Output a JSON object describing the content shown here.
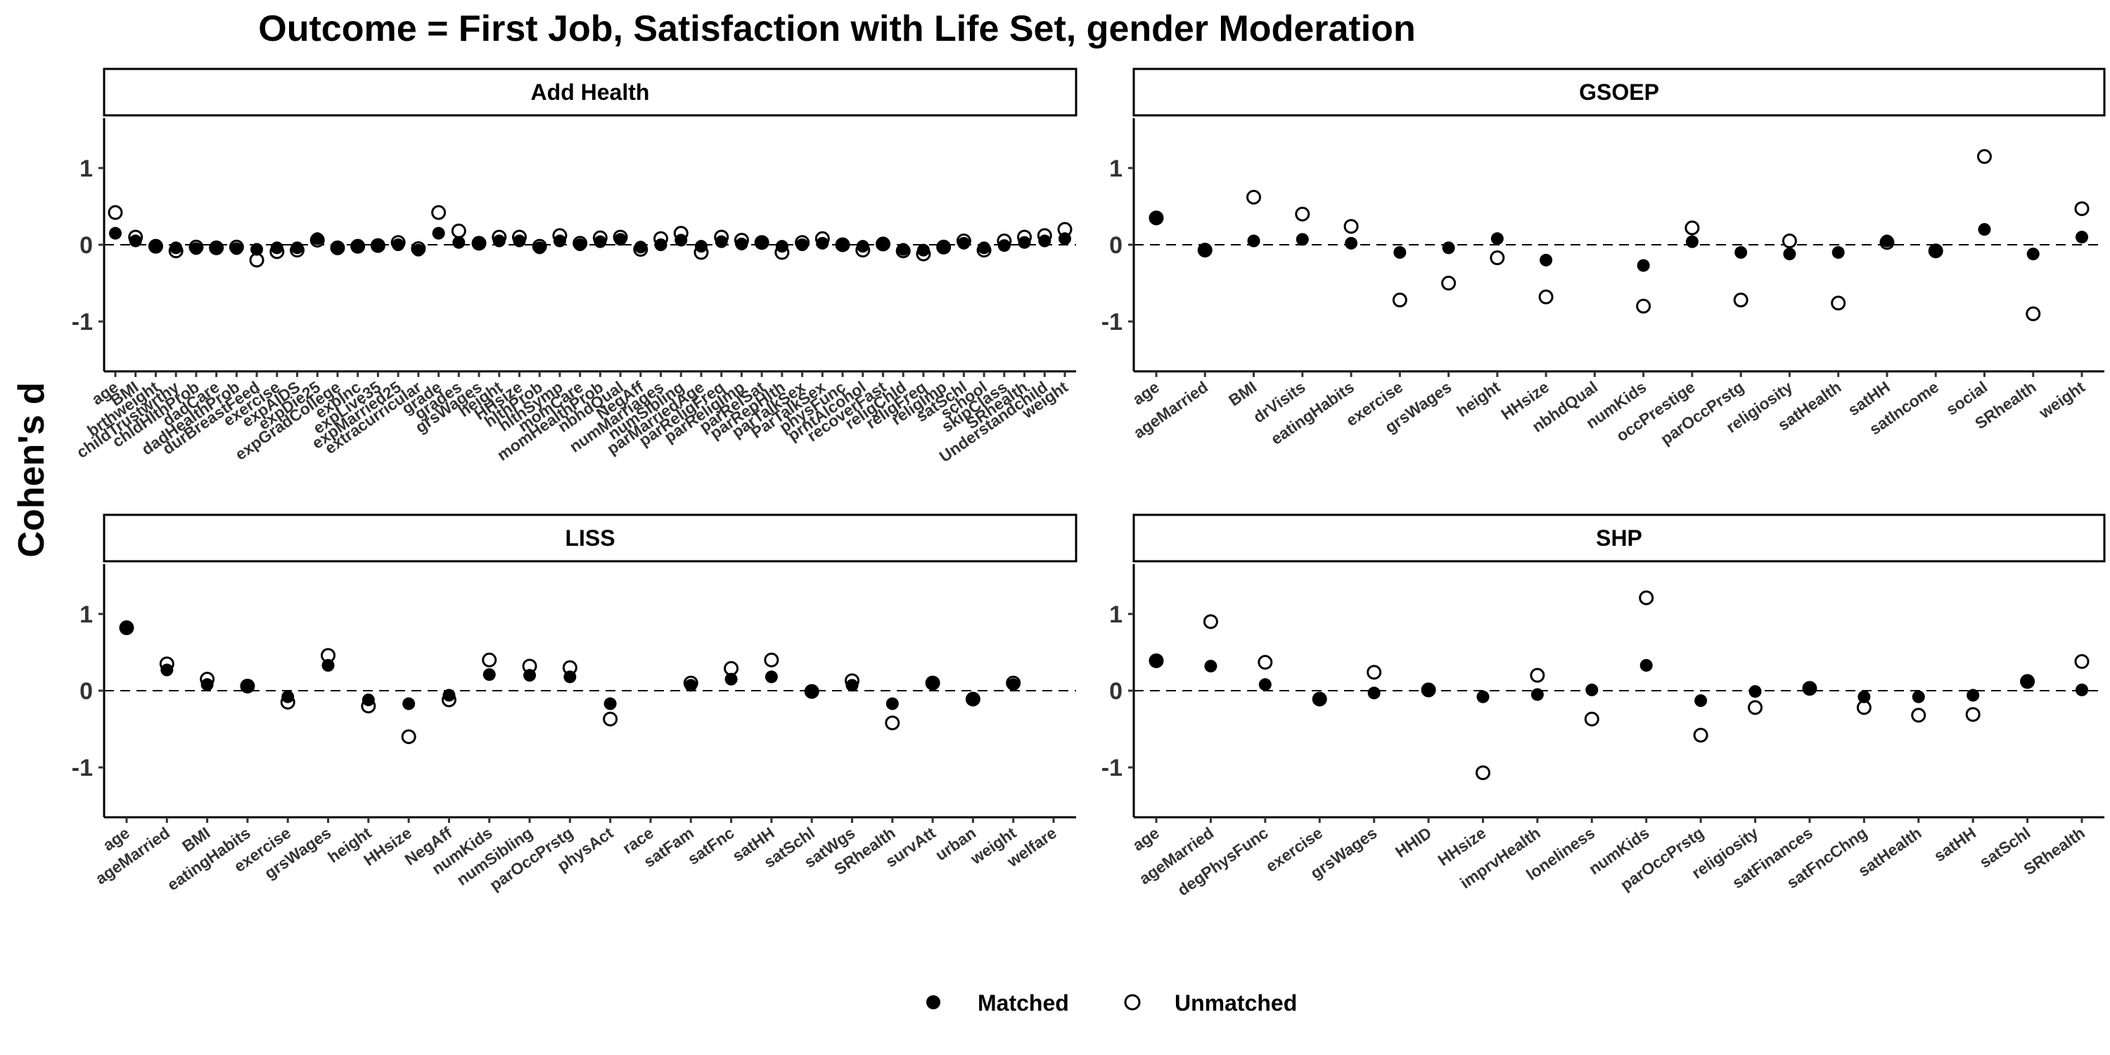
{
  "chart_data": {
    "type": "scatter",
    "title": "Outcome = First Job, Satisfaction with Life Set, gender Moderation",
    "ylabel": "Cohen's d",
    "xlabel": "",
    "ylim": [
      -1.65,
      1.65
    ],
    "yticks": [
      -1,
      0,
      1
    ],
    "reference_line_y": 0,
    "legend": {
      "position": "bottom",
      "entries": [
        {
          "name": "Matched",
          "marker": "filled-circle"
        },
        {
          "name": "Unmatched",
          "marker": "open-circle"
        }
      ]
    },
    "colors": {
      "point": "#000000",
      "refline": "#000000",
      "strip_fill": "#ffffff"
    },
    "panels": [
      {
        "name": "Add Health",
        "categories": [
          "age",
          "BMI",
          "brthweight",
          "childTrustwrthy",
          "chldHlthProb",
          "dadCare",
          "dadHealthProb",
          "durBreastFeed",
          "exercise",
          "expAIDS",
          "expDie25",
          "expGradCollege",
          "expInc",
          "expLive35",
          "expMarried25",
          "extracurricular",
          "grade",
          "grades",
          "grsWages",
          "height",
          "HHsize",
          "hlthProb",
          "hlthSymp",
          "momCare",
          "momHealthProb",
          "nbhdQual",
          "NegAff",
          "numMarriages",
          "numSibling",
          "parMarriedAge",
          "parReligFreq",
          "parReligImp",
          "parRelSat",
          "parRepHlth",
          "parTalkSex",
          "ParTalkSex",
          "physFunc",
          "prntAlcohol",
          "recoverFast",
          "religChld",
          "religFreq",
          "religImp",
          "satSchl",
          "school",
          "skipClass",
          "SRhealth",
          "Understandchild",
          "weight"
        ],
        "series": [
          {
            "name": "Matched",
            "values": [
              0.15,
              0.05,
              -0.03,
              -0.04,
              -0.05,
              -0.04,
              -0.05,
              -0.06,
              -0.04,
              -0.04,
              0.08,
              -0.03,
              -0.03,
              -0.02,
              0.0,
              -0.07,
              0.15,
              0.03,
              0.02,
              0.05,
              0.05,
              -0.04,
              0.05,
              0.0,
              0.04,
              0.07,
              -0.03,
              0.0,
              0.06,
              -0.02,
              0.04,
              0.01,
              0.02,
              -0.02,
              0.0,
              0.02,
              0.0,
              -0.02,
              0.01,
              -0.06,
              -0.07,
              -0.04,
              0.02,
              -0.04,
              -0.01,
              0.03,
              0.05,
              0.08
            ]
          },
          {
            "name": "Unmatched",
            "values": [
              0.42,
              0.1,
              -0.02,
              -0.08,
              -0.03,
              -0.04,
              -0.03,
              -0.2,
              -0.09,
              -0.07,
              0.06,
              -0.04,
              -0.02,
              -0.01,
              0.03,
              -0.05,
              0.42,
              0.18,
              0.02,
              0.1,
              0.1,
              -0.02,
              0.12,
              0.02,
              0.09,
              0.1,
              -0.06,
              0.08,
              0.15,
              -0.1,
              0.1,
              0.06,
              0.03,
              -0.1,
              0.03,
              0.08,
              0.0,
              -0.07,
              0.01,
              -0.08,
              -0.12,
              -0.03,
              0.05,
              -0.07,
              0.05,
              0.1,
              0.12,
              0.2
            ]
          }
        ]
      },
      {
        "name": "GSOEP",
        "categories": [
          "age",
          "ageMarried",
          "BMI",
          "drVisits",
          "eatingHabits",
          "exercise",
          "grsWages",
          "height",
          "HHsize",
          "nbhdQual",
          "numKids",
          "occPrestige",
          "parOccPrstg",
          "religiosity",
          "satHealth",
          "satHH",
          "satIncome",
          "social",
          "SRhealth",
          "weight"
        ],
        "series": [
          {
            "name": "Matched",
            "values": [
              0.35,
              -0.07,
              0.05,
              0.07,
              0.02,
              -0.1,
              -0.04,
              0.08,
              -0.2,
              null,
              -0.27,
              0.04,
              -0.1,
              -0.12,
              -0.1,
              0.05,
              -0.08,
              0.2,
              -0.12,
              0.1
            ]
          },
          {
            "name": "Unmatched",
            "values": [
              0.35,
              -0.07,
              0.62,
              0.4,
              0.24,
              -0.72,
              -0.5,
              -0.17,
              -0.68,
              null,
              -0.8,
              0.22,
              -0.72,
              0.05,
              -0.76,
              0.03,
              -0.08,
              1.15,
              -0.9,
              0.47
            ]
          }
        ]
      },
      {
        "name": "LISS",
        "categories": [
          "age",
          "ageMarried",
          "BMI",
          "eatingHabits",
          "exercise",
          "grsWages",
          "height",
          "HHsize",
          "NegAff",
          "numKids",
          "numSibling",
          "parOccPrstg",
          "physAct",
          "race",
          "satFam",
          "satFnc",
          "satHH",
          "satSchl",
          "satWgs",
          "SRhealth",
          "survAtt",
          "urban",
          "weight",
          "welfare"
        ],
        "series": [
          {
            "name": "Matched",
            "values": [
              0.82,
              0.27,
              0.08,
              0.05,
              -0.08,
              0.33,
              -0.12,
              -0.17,
              -0.06,
              0.21,
              0.2,
              0.18,
              -0.17,
              null,
              0.07,
              0.15,
              0.18,
              -0.01,
              0.07,
              -0.17,
              0.1,
              -0.1,
              0.08,
              null
            ]
          },
          {
            "name": "Unmatched",
            "values": [
              0.82,
              0.35,
              0.15,
              0.06,
              -0.15,
              0.46,
              -0.2,
              -0.6,
              -0.12,
              0.4,
              0.32,
              0.3,
              -0.37,
              null,
              0.1,
              0.29,
              0.4,
              -0.01,
              0.13,
              -0.42,
              0.1,
              -0.11,
              0.1,
              null
            ]
          }
        ]
      },
      {
        "name": "SHP",
        "categories": [
          "age",
          "ageMarried",
          "degPhysFunc",
          "exercise",
          "grsWages",
          "HHID",
          "HHsize",
          "imprvHealth",
          "loneliness",
          "numKids",
          "parOccPrstg",
          "religiosity",
          "satFinances",
          "satFncChng",
          "satHealth",
          "satHH",
          "satSchl",
          "SRhealth"
        ],
        "series": [
          {
            "name": "Matched",
            "values": [
              0.39,
              0.32,
              0.08,
              -0.11,
              -0.03,
              0.01,
              -0.08,
              -0.05,
              0.01,
              0.33,
              -0.13,
              -0.01,
              0.02,
              -0.08,
              -0.08,
              -0.06,
              0.13,
              0.01
            ]
          },
          {
            "name": "Unmatched",
            "values": [
              0.39,
              0.9,
              0.37,
              -0.11,
              0.24,
              0.01,
              -1.07,
              0.2,
              -0.37,
              1.21,
              -0.58,
              -0.22,
              0.03,
              -0.22,
              -0.32,
              -0.31,
              0.12,
              0.38
            ]
          }
        ]
      }
    ]
  }
}
